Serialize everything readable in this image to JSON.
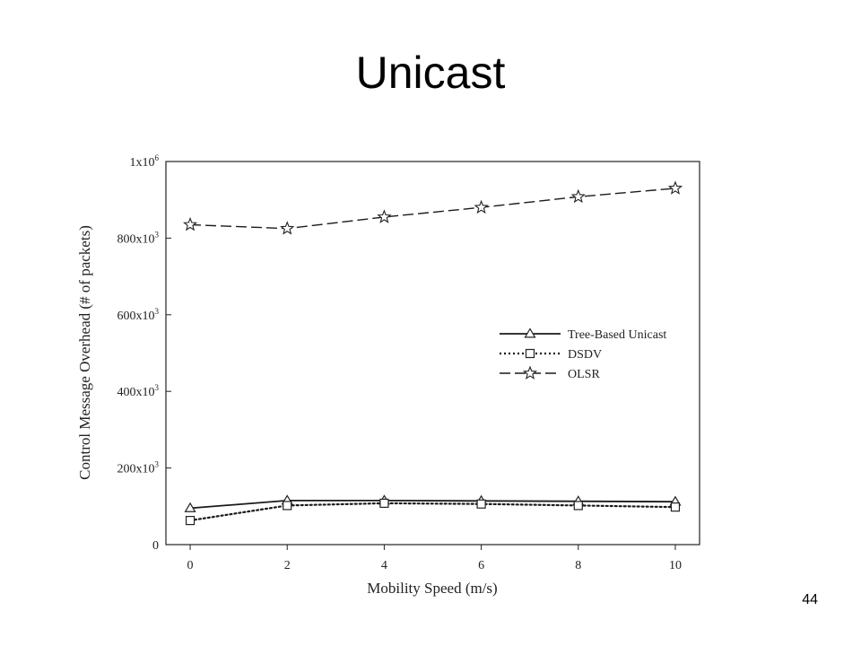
{
  "slide": {
    "title": "Unicast",
    "page_number": "44"
  },
  "chart_data": {
    "type": "line",
    "title": "",
    "xlabel": "Mobility Speed (m/s)",
    "ylabel": "Control Message Overhead (# of packets)",
    "x": [
      0,
      2,
      4,
      6,
      8,
      10
    ],
    "xlim": [
      -0.5,
      10.5
    ],
    "ylim": [
      0,
      1000000
    ],
    "xticks": [
      0,
      2,
      4,
      6,
      8,
      10
    ],
    "xtick_labels": [
      "0",
      "2",
      "4",
      "6",
      "8",
      "10"
    ],
    "yticks": [
      0,
      200000,
      400000,
      600000,
      800000,
      1000000
    ],
    "ytick_labels": [
      {
        "base": "0",
        "exp": ""
      },
      {
        "base": "200x10",
        "exp": "3"
      },
      {
        "base": "400x10",
        "exp": "3"
      },
      {
        "base": "600x10",
        "exp": "3"
      },
      {
        "base": "800x10",
        "exp": "3"
      },
      {
        "base": "1x10",
        "exp": "6"
      }
    ],
    "grid": false,
    "legend_position": "right-middle",
    "series": [
      {
        "name": "Tree-Based Unicast",
        "marker": "triangle",
        "line_style": "solid",
        "color": "#1a1a1a",
        "values": [
          95000,
          115000,
          115000,
          114000,
          113000,
          112000
        ]
      },
      {
        "name": "DSDV",
        "marker": "square",
        "line_style": "dotted",
        "color": "#1a1a1a",
        "values": [
          63000,
          102000,
          108000,
          106000,
          102000,
          98000
        ]
      },
      {
        "name": "OLSR",
        "marker": "star",
        "line_style": "dashed",
        "color": "#1a1a1a",
        "values": [
          835000,
          825000,
          855000,
          880000,
          908000,
          930000
        ]
      }
    ]
  }
}
